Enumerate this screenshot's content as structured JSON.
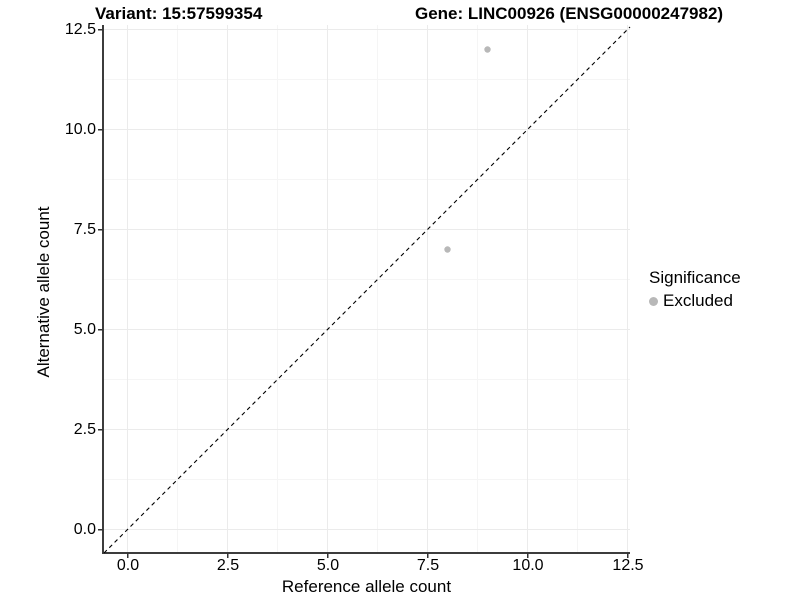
{
  "header": {
    "variant_title": "Variant: 15:57599354",
    "gene_title": "Gene: LINC00926 (ENSG00000247982)"
  },
  "colors": {
    "axis": "#3c3c3c",
    "tick": "#333333",
    "grid_major": "#ebebeb",
    "grid_minor": "#f5f5f5",
    "identity_line": "#000000",
    "excluded_point": "#b8b8b8",
    "text": "#000000",
    "background": "#ffffff"
  },
  "chart_data": {
    "type": "scatter",
    "xlabel": "Reference allele count",
    "ylabel": "Alternative allele count",
    "xlim": [
      -0.6,
      12.6
    ],
    "ylim": [
      -0.6,
      12.6
    ],
    "x_ticks": [
      0,
      2.5,
      5,
      7.5,
      10,
      12.5
    ],
    "x_tick_labels": [
      "0.0",
      "2.5",
      "5.0",
      "7.5",
      "10.0",
      "12.5"
    ],
    "y_ticks": [
      0,
      2.5,
      5,
      7.5,
      10,
      12.5
    ],
    "y_tick_labels": [
      "0.0",
      "2.5",
      "5.0",
      "7.5",
      "10.0",
      "12.5"
    ],
    "minor_ticks": [
      1.25,
      3.75,
      6.25,
      8.75,
      11.25
    ],
    "grid": "major+minor",
    "identity_line": {
      "slope": 1,
      "intercept": 0,
      "style": "dashed"
    },
    "series": [
      {
        "name": "Excluded",
        "color": "#b8b8b8",
        "points": [
          {
            "x": 8,
            "y": 7
          },
          {
            "x": 9,
            "y": 12
          }
        ]
      }
    ],
    "legend": {
      "title": "Significance",
      "position": "right",
      "entries": [
        {
          "label": "Excluded",
          "color": "#b8b8b8"
        }
      ]
    }
  }
}
